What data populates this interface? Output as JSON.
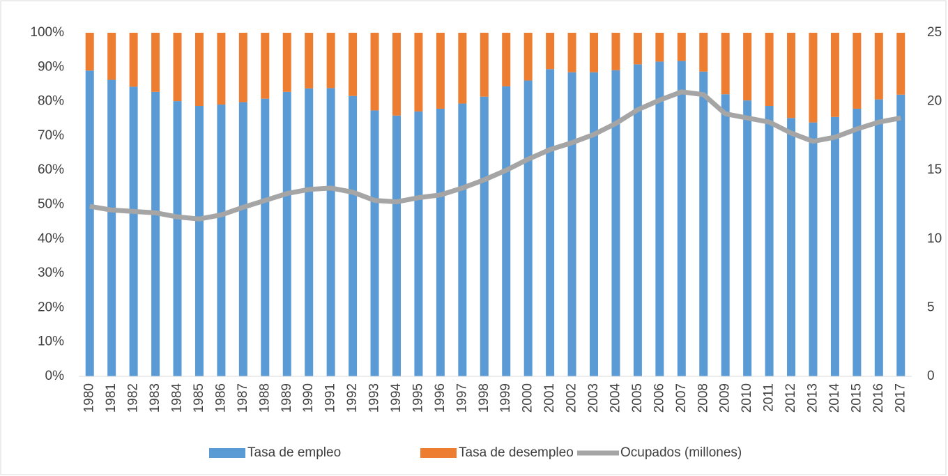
{
  "chart_data": {
    "type": "bar",
    "categories": [
      "1980",
      "1981",
      "1982",
      "1983",
      "1984",
      "1985",
      "1986",
      "1987",
      "1988",
      "1989",
      "1990",
      "1991",
      "1992",
      "1993",
      "1994",
      "1995",
      "1996",
      "1997",
      "1998",
      "1999",
      "2000",
      "2001",
      "2002",
      "2003",
      "2004",
      "2005",
      "2006",
      "2007",
      "2008",
      "2009",
      "2010",
      "2011",
      "2012",
      "2013",
      "2014",
      "2015",
      "2016",
      "2017"
    ],
    "series": [
      {
        "name": "Tasa de empleo",
        "color": "#5b9bd5",
        "values": [
          89.0,
          86.3,
          84.3,
          82.8,
          80.1,
          78.7,
          79.1,
          79.8,
          80.8,
          82.8,
          83.8,
          83.9,
          81.6,
          77.4,
          75.9,
          77.1,
          77.9,
          79.4,
          81.4,
          84.4,
          86.1,
          89.4,
          88.5,
          88.5,
          89.1,
          90.8,
          91.6,
          91.8,
          88.7,
          82.1,
          80.3,
          78.7,
          75.2,
          73.9,
          75.5,
          77.9,
          80.6,
          82.0
        ]
      },
      {
        "name": "Tasa de desempleo",
        "color": "#ed7d31",
        "values": [
          11.0,
          13.7,
          15.7,
          17.2,
          19.9,
          21.3,
          20.9,
          20.2,
          19.2,
          17.2,
          16.2,
          16.1,
          18.4,
          22.6,
          24.1,
          22.9,
          22.1,
          20.6,
          18.6,
          15.6,
          13.9,
          10.6,
          11.5,
          11.5,
          10.9,
          9.2,
          8.4,
          8.2,
          11.3,
          17.9,
          19.7,
          21.3,
          24.8,
          26.1,
          24.5,
          22.1,
          19.4,
          18.0
        ]
      },
      {
        "name": "Ocupados (millones)",
        "color": "#a5a5a5",
        "axis": "y2",
        "type": "line",
        "values": [
          12.37,
          12.1,
          12.0,
          11.9,
          11.6,
          11.45,
          11.75,
          12.3,
          12.8,
          13.3,
          13.6,
          13.7,
          13.4,
          12.8,
          12.7,
          13.0,
          13.2,
          13.7,
          14.3,
          15.0,
          15.8,
          16.5,
          17.0,
          17.6,
          18.4,
          19.4,
          20.1,
          20.7,
          20.5,
          19.1,
          18.8,
          18.5,
          17.7,
          17.1,
          17.4,
          18.0,
          18.5,
          18.8
        ]
      }
    ],
    "stacked": true,
    "ylim": [
      0,
      100
    ],
    "yticks": [
      {
        "value": 0,
        "label": "0%"
      },
      {
        "value": 10,
        "label": "10%"
      },
      {
        "value": 20,
        "label": "20%"
      },
      {
        "value": 30,
        "label": "30%"
      },
      {
        "value": 40,
        "label": "40%"
      },
      {
        "value": 50,
        "label": "50%"
      },
      {
        "value": 60,
        "label": "60%"
      },
      {
        "value": 70,
        "label": "70%"
      },
      {
        "value": 80,
        "label": "80%"
      },
      {
        "value": 90,
        "label": "90%"
      },
      {
        "value": 100,
        "label": "100%"
      }
    ],
    "y2lim": [
      0,
      25
    ],
    "y2ticks": [
      0,
      5,
      10,
      15,
      20,
      25
    ],
    "legend": "bottom"
  }
}
